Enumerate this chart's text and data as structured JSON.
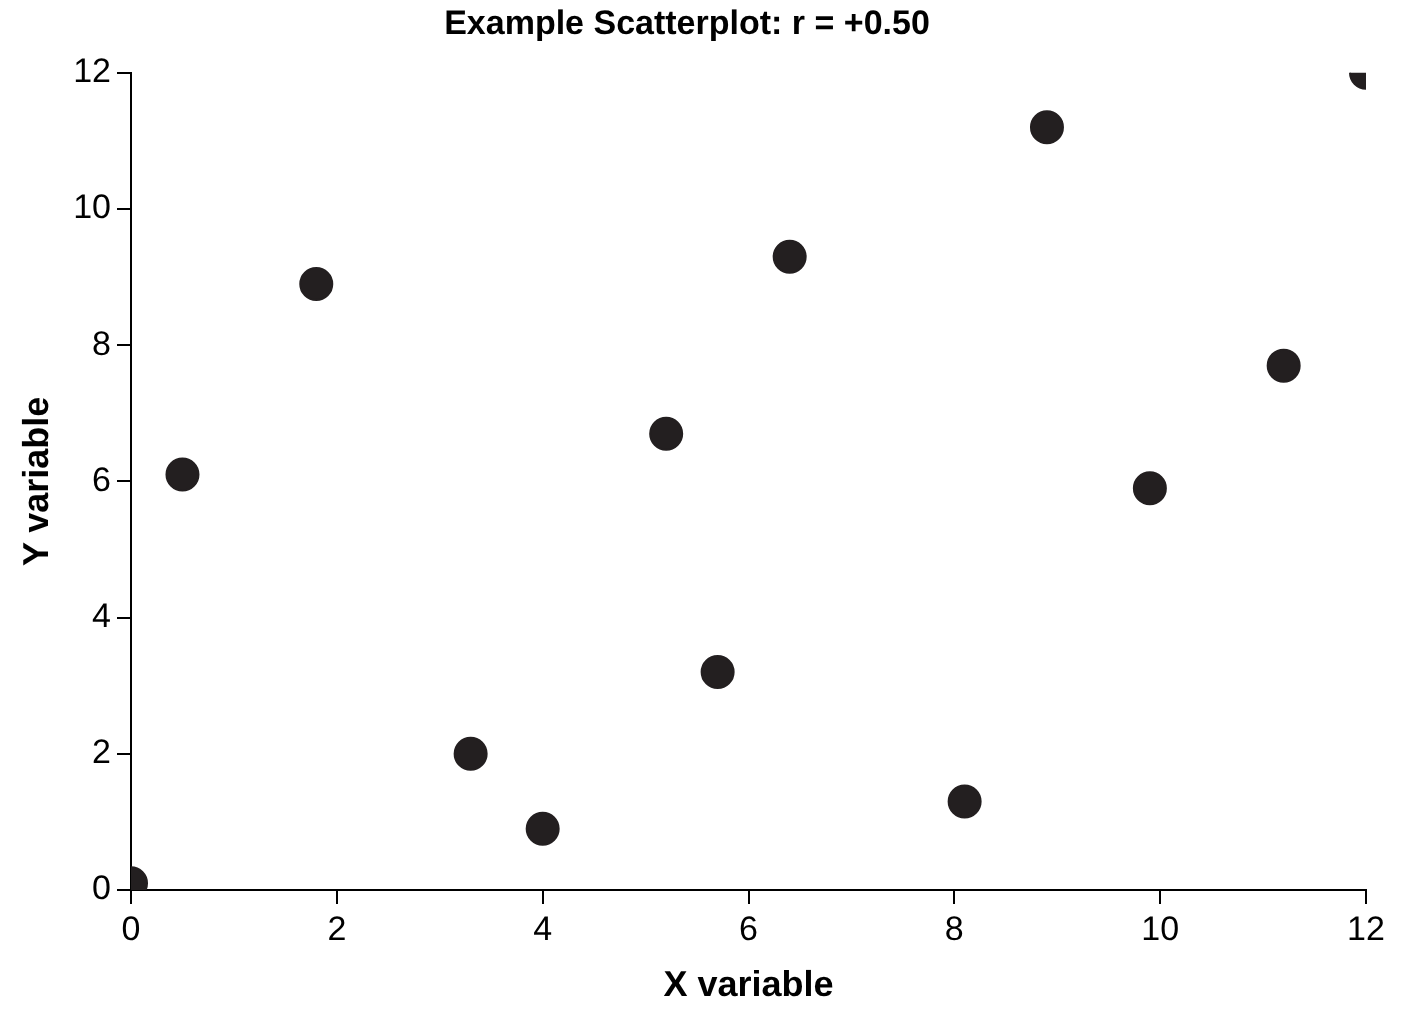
{
  "chart_data": {
    "type": "scatter",
    "title": "Example Scatterplot: r = +0.50",
    "xlabel": "X variable",
    "ylabel": "Y variable",
    "x": [
      0,
      0.5,
      1.8,
      3.3,
      4.0,
      5.2,
      5.7,
      6.4,
      8.1,
      8.9,
      9.9,
      11.2,
      12
    ],
    "series": [
      {
        "color": "#231f20",
        "values": [
          0.1,
          6.1,
          8.9,
          2.0,
          0.9,
          6.7,
          3.2,
          9.3,
          1.3,
          11.2,
          5.9,
          7.7,
          12
        ]
      }
    ],
    "xlim": [
      0,
      12
    ],
    "xticks": [
      0,
      2,
      4,
      6,
      8,
      10,
      12
    ],
    "ylim": [
      0,
      12
    ],
    "yticks": [
      0,
      2,
      4,
      6,
      8,
      10,
      12
    ],
    "grid": false,
    "legend": false,
    "marker": "circle"
  }
}
